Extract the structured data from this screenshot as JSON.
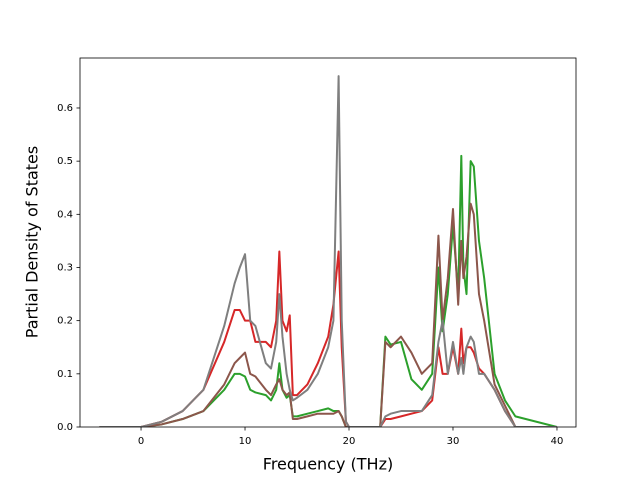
{
  "chart_data": {
    "type": "line",
    "xlabel": "Frequency (THz)",
    "ylabel": "Partial Density of States",
    "x": [
      -4,
      0,
      2,
      4,
      6,
      8,
      9,
      9.5,
      10,
      10.5,
      11,
      12,
      12.5,
      13,
      13.3,
      13.6,
      14,
      14.3,
      14.6,
      15,
      16,
      17,
      18,
      18.5,
      19,
      19.3,
      19.7,
      20,
      23,
      23.5,
      24,
      25,
      26,
      27,
      28,
      28.6,
      29,
      29.5,
      30,
      30.5,
      30.8,
      31,
      31.3,
      31.7,
      32,
      32.5,
      33,
      34,
      35,
      36,
      40
    ],
    "series": [
      {
        "color": "#2ca02c",
        "values": [
          0,
          0,
          0.005,
          0.015,
          0.03,
          0.07,
          0.1,
          0.1,
          0.095,
          0.07,
          0.065,
          0.06,
          0.05,
          0.07,
          0.12,
          0.07,
          0.055,
          0.06,
          0.02,
          0.02,
          0.025,
          0.03,
          0.035,
          0.03,
          0.03,
          0.02,
          0,
          0,
          0,
          0.17,
          0.155,
          0.16,
          0.09,
          0.07,
          0.1,
          0.3,
          0.18,
          0.25,
          0.38,
          0.25,
          0.51,
          0.3,
          0.25,
          0.5,
          0.49,
          0.35,
          0.28,
          0.1,
          0.05,
          0.02,
          0
        ]
      },
      {
        "color": "#d62728",
        "values": [
          0,
          0,
          0.01,
          0.03,
          0.07,
          0.16,
          0.22,
          0.22,
          0.2,
          0.2,
          0.16,
          0.16,
          0.15,
          0.2,
          0.33,
          0.2,
          0.18,
          0.21,
          0.06,
          0.06,
          0.08,
          0.12,
          0.17,
          0.23,
          0.33,
          0.15,
          0.01,
          0,
          0,
          0.015,
          0.015,
          0.02,
          0.025,
          0.03,
          0.05,
          0.15,
          0.1,
          0.1,
          0.15,
          0.1,
          0.185,
          0.12,
          0.15,
          0.15,
          0.14,
          0.11,
          0.1,
          0.07,
          0.03,
          0,
          0
        ]
      },
      {
        "color": "#8c564b",
        "values": [
          0,
          0,
          0.005,
          0.015,
          0.03,
          0.08,
          0.12,
          0.13,
          0.14,
          0.1,
          0.095,
          0.07,
          0.06,
          0.08,
          0.09,
          0.07,
          0.06,
          0.065,
          0.015,
          0.015,
          0.02,
          0.025,
          0.025,
          0.025,
          0.03,
          0.02,
          0,
          0,
          0,
          0.16,
          0.15,
          0.17,
          0.14,
          0.1,
          0.12,
          0.36,
          0.2,
          0.28,
          0.41,
          0.23,
          0.35,
          0.28,
          0.32,
          0.42,
          0.4,
          0.25,
          0.2,
          0.08,
          0.04,
          0,
          0
        ]
      },
      {
        "color": "#7f7f7f",
        "values": [
          0,
          0,
          0.01,
          0.03,
          0.07,
          0.19,
          0.27,
          0.3,
          0.325,
          0.2,
          0.19,
          0.12,
          0.11,
          0.16,
          0.25,
          0.17,
          0.1,
          0.07,
          0.05,
          0.055,
          0.07,
          0.1,
          0.15,
          0.2,
          0.66,
          0.2,
          0.01,
          0,
          0,
          0.02,
          0.025,
          0.03,
          0.03,
          0.03,
          0.06,
          0.16,
          0.2,
          0.1,
          0.16,
          0.1,
          0.13,
          0.1,
          0.15,
          0.17,
          0.16,
          0.1,
          0.1,
          0.07,
          0.03,
          0,
          0
        ]
      }
    ],
    "xlim": [
      -5.87,
      41.83
    ],
    "xticks": [
      0,
      10,
      20,
      30,
      40
    ],
    "ylim": [
      0,
      0.694
    ],
    "yticks": [
      {
        "value": 0,
        "label": "0.0"
      },
      0.1,
      0.2,
      0.3,
      0.4,
      0.5,
      0.6
    ]
  }
}
